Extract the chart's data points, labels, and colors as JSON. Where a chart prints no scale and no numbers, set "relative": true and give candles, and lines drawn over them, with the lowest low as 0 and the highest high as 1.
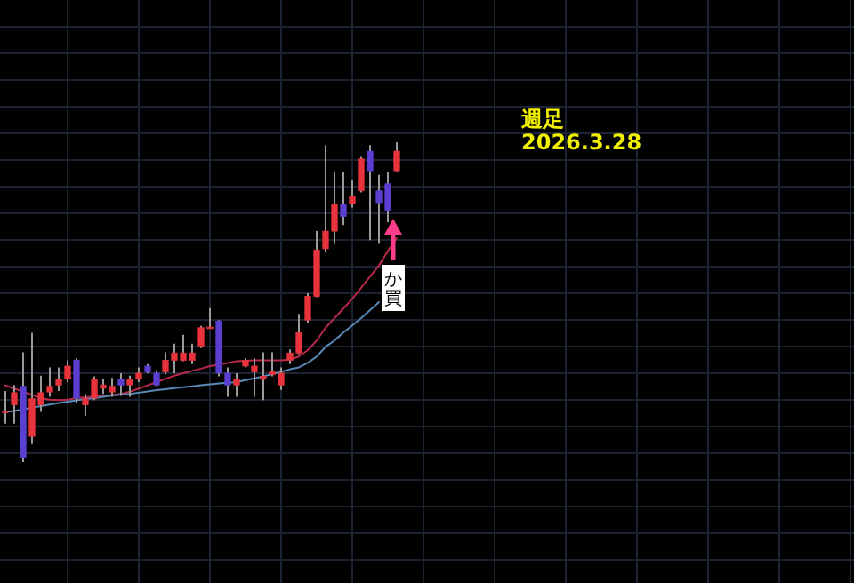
{
  "chart_data": {
    "type": "candlestick",
    "relative": true,
    "title": "週足",
    "subtitle": "2026.3.28",
    "annotations": [
      "か買"
    ],
    "grid": true,
    "categories": [
      null,
      null,
      null,
      null,
      null,
      null,
      null,
      null,
      null,
      null,
      null,
      null,
      null,
      null,
      null,
      null,
      null,
      null,
      null,
      null,
      null,
      null,
      null,
      null,
      null,
      null,
      null,
      null,
      null,
      null,
      null,
      null,
      null,
      null,
      null,
      null,
      null,
      null,
      null,
      null,
      null,
      null,
      null,
      null,
      null,
      null,
      null,
      null,
      null,
      null,
      null,
      null,
      null,
      null,
      null,
      null,
      null,
      null,
      null,
      null,
      null,
      null,
      null,
      null,
      null,
      null,
      null,
      null,
      null,
      null,
      null,
      null,
      null,
      null,
      null,
      null,
      null,
      null,
      null,
      null,
      null,
      null,
      null,
      null,
      null,
      null,
      null,
      null,
      null,
      null,
      null,
      null,
      null,
      null,
      null,
      null
    ],
    "ohlc": [
      [
        0.155,
        0.222,
        0.12,
        0.16
      ],
      [
        0.179,
        0.241,
        0.12,
        0.217
      ],
      [
        0.237,
        0.343,
        0,
        0.015
      ],
      [
        0.08,
        0.404,
        0.056,
        0.198
      ],
      [
        0.179,
        0.27,
        0.157,
        0.217
      ],
      [
        0.219,
        0.296,
        0.204,
        0.237
      ],
      [
        0.241,
        0.296,
        0.222,
        0.259
      ],
      [
        0.259,
        0.318,
        0.25,
        0.3
      ],
      [
        0.318,
        0.324,
        0.185,
        0.2
      ],
      [
        0.179,
        0.213,
        0.144,
        0.198
      ],
      [
        0.2,
        0.268,
        0.194,
        0.259
      ],
      [
        0.231,
        0.259,
        0.213,
        0.241
      ],
      [
        0.219,
        0.263,
        0.204,
        0.237
      ],
      [
        0.259,
        0.278,
        0.207,
        0.241
      ],
      [
        0.241,
        0.27,
        0.204,
        0.259
      ],
      [
        0.259,
        0.296,
        0.25,
        0.278
      ],
      [
        0.3,
        0.306,
        0.278,
        0.282
      ],
      [
        0.278,
        0.287,
        0.237,
        0.241
      ],
      [
        0.282,
        0.343,
        0.274,
        0.318
      ],
      [
        0.318,
        0.37,
        0.278,
        0.341
      ],
      [
        0.318,
        0.398,
        0.315,
        0.341
      ],
      [
        0.318,
        0.37,
        0.306,
        0.341
      ],
      [
        0.363,
        0.426,
        0.356,
        0.42
      ],
      [
        0.417,
        0.481,
        0.417,
        0.422
      ],
      [
        0.441,
        0.444,
        0.268,
        0.278
      ],
      [
        0.278,
        0.296,
        0.204,
        0.241
      ],
      [
        0.241,
        0.278,
        0.204,
        0.259
      ],
      [
        0.3,
        0.324,
        0.296,
        0.318
      ],
      [
        0.282,
        0.324,
        0.204,
        0.3
      ],
      [
        0.259,
        0.343,
        0.194,
        0.268
      ],
      [
        0.274,
        0.343,
        0.268,
        0.282
      ],
      [
        0.241,
        0.296,
        0.226,
        0.278
      ],
      [
        0.318,
        0.352,
        0.306,
        0.341
      ],
      [
        0.341,
        0.463,
        0.337,
        0.404
      ],
      [
        0.444,
        0.528,
        0.435,
        0.518
      ],
      [
        0.518,
        0.722,
        0.515,
        0.663
      ],
      [
        0.667,
        0.991,
        0.657,
        0.722
      ],
      [
        0.722,
        0.907,
        0.685,
        0.806
      ],
      [
        0.806,
        0.907,
        0.741,
        0.768
      ],
      [
        0.809,
        0.88,
        0.796,
        0.83
      ],
      [
        0.848,
        0.954,
        0.843,
        0.948
      ],
      [
        0.972,
        0.991,
        0.694,
        0.911
      ],
      [
        0.848,
        0.898,
        0.685,
        0.811
      ],
      [
        0.87,
        0.907,
        0.75,
        0.787
      ],
      [
        0.911,
        1,
        0.907,
        0.972
      ],
      null,
      null,
      null,
      null,
      null,
      null,
      null,
      null,
      null,
      null,
      null,
      null,
      null,
      null,
      null,
      null,
      null,
      null,
      null,
      null,
      null,
      null,
      null,
      null,
      null,
      null,
      null,
      null,
      null,
      null,
      null,
      null,
      null,
      null,
      null,
      null,
      null,
      null,
      null,
      null,
      null,
      null,
      null,
      null,
      null,
      null,
      null,
      null,
      null,
      null,
      null
    ],
    "colors": [
      "#e8323c",
      "#e8323c",
      "#5b3fd0",
      "#e8323c",
      "#e8323c",
      "#e8323c",
      "#e8323c",
      "#e8323c",
      "#5b3fd0",
      "#e8323c",
      "#e8323c",
      "#e8323c",
      "#e8323c",
      "#5b3fd0",
      "#e8323c",
      "#e8323c",
      "#5b3fd0",
      "#5b3fd0",
      "#e8323c",
      "#e8323c",
      "#e8323c",
      "#e8323c",
      "#e8323c",
      "#e8323c",
      "#5b3fd0",
      "#5b3fd0",
      "#e8323c",
      "#e8323c",
      "#e8323c",
      "#e8323c",
      "#e8323c",
      "#e8323c",
      "#e8323c",
      "#e8323c",
      "#e8323c",
      "#e8323c",
      "#e8323c",
      "#e8323c",
      "#5b3fd0",
      "#e8323c",
      "#e8323c",
      "#5b3fd0",
      "#5b3fd0",
      "#5b3fd0",
      "#e8323c",
      null,
      null,
      null,
      null,
      null,
      null,
      null,
      null,
      null,
      null,
      null,
      null,
      null,
      null,
      null,
      null,
      null,
      null,
      null,
      null,
      null,
      null,
      null,
      null,
      null,
      null,
      null,
      null,
      null,
      null,
      null,
      null,
      null,
      null,
      null,
      null,
      null,
      null,
      null,
      null,
      null,
      null,
      null,
      null,
      null,
      null,
      null,
      null,
      null,
      null,
      null
    ],
    "series": [
      {
        "type": "line",
        "color": "#b8284a",
        "values": [
          0.24,
          0.23,
          0.22,
          0.21,
          0.2,
          0.195,
          0.194,
          0.195,
          0.2,
          0.203,
          0.205,
          0.207,
          0.21,
          0.213,
          0.22,
          0.23,
          0.24,
          0.25,
          0.26,
          0.27,
          0.278,
          0.285,
          0.292,
          0.3,
          0.305,
          0.31,
          0.315,
          0.317,
          0.318,
          0.318,
          0.318,
          0.318,
          0.32,
          0.33,
          0.35,
          0.38,
          0.42,
          0.45,
          0.48,
          0.51,
          0.545,
          0.58,
          0.615,
          0.66,
          0.7,
          null,
          null,
          null,
          null,
          null,
          null,
          null,
          null,
          null,
          null,
          null,
          null,
          null,
          null,
          null,
          null,
          null,
          null,
          null,
          null,
          null,
          null,
          null,
          null,
          null,
          null,
          null,
          null,
          null,
          null,
          null,
          null,
          null,
          null,
          null,
          null,
          null,
          null,
          null,
          null,
          null,
          null,
          null,
          null,
          null,
          null,
          null,
          null,
          null,
          null,
          null
        ]
      },
      {
        "type": "line",
        "color": "#5a8ab8",
        "values": [
          0.157,
          0.16,
          0.165,
          0.17,
          0.175,
          0.18,
          0.185,
          0.189,
          0.193,
          0.197,
          0.2,
          0.204,
          0.208,
          0.211,
          0.213,
          0.217,
          0.221,
          0.225,
          0.228,
          0.231,
          0.234,
          0.237,
          0.24,
          0.243,
          0.246,
          0.248,
          0.25,
          0.256,
          0.262,
          0.268,
          0.275,
          0.282,
          0.29,
          0.296,
          0.31,
          0.33,
          0.36,
          0.38,
          0.405,
          0.427,
          0.45,
          0.475,
          0.5,
          null,
          null,
          null,
          null,
          null,
          null,
          null,
          null,
          null,
          null,
          null,
          null,
          null,
          null,
          null,
          null,
          null,
          null,
          null,
          null,
          null,
          null,
          null,
          null,
          null,
          null,
          null,
          null,
          null,
          null,
          null,
          null,
          null,
          null,
          null,
          null,
          null,
          null,
          null,
          null,
          null,
          null,
          null,
          null,
          null,
          null,
          null,
          null,
          null,
          null,
          null,
          null,
          null
        ]
      }
    ]
  }
}
